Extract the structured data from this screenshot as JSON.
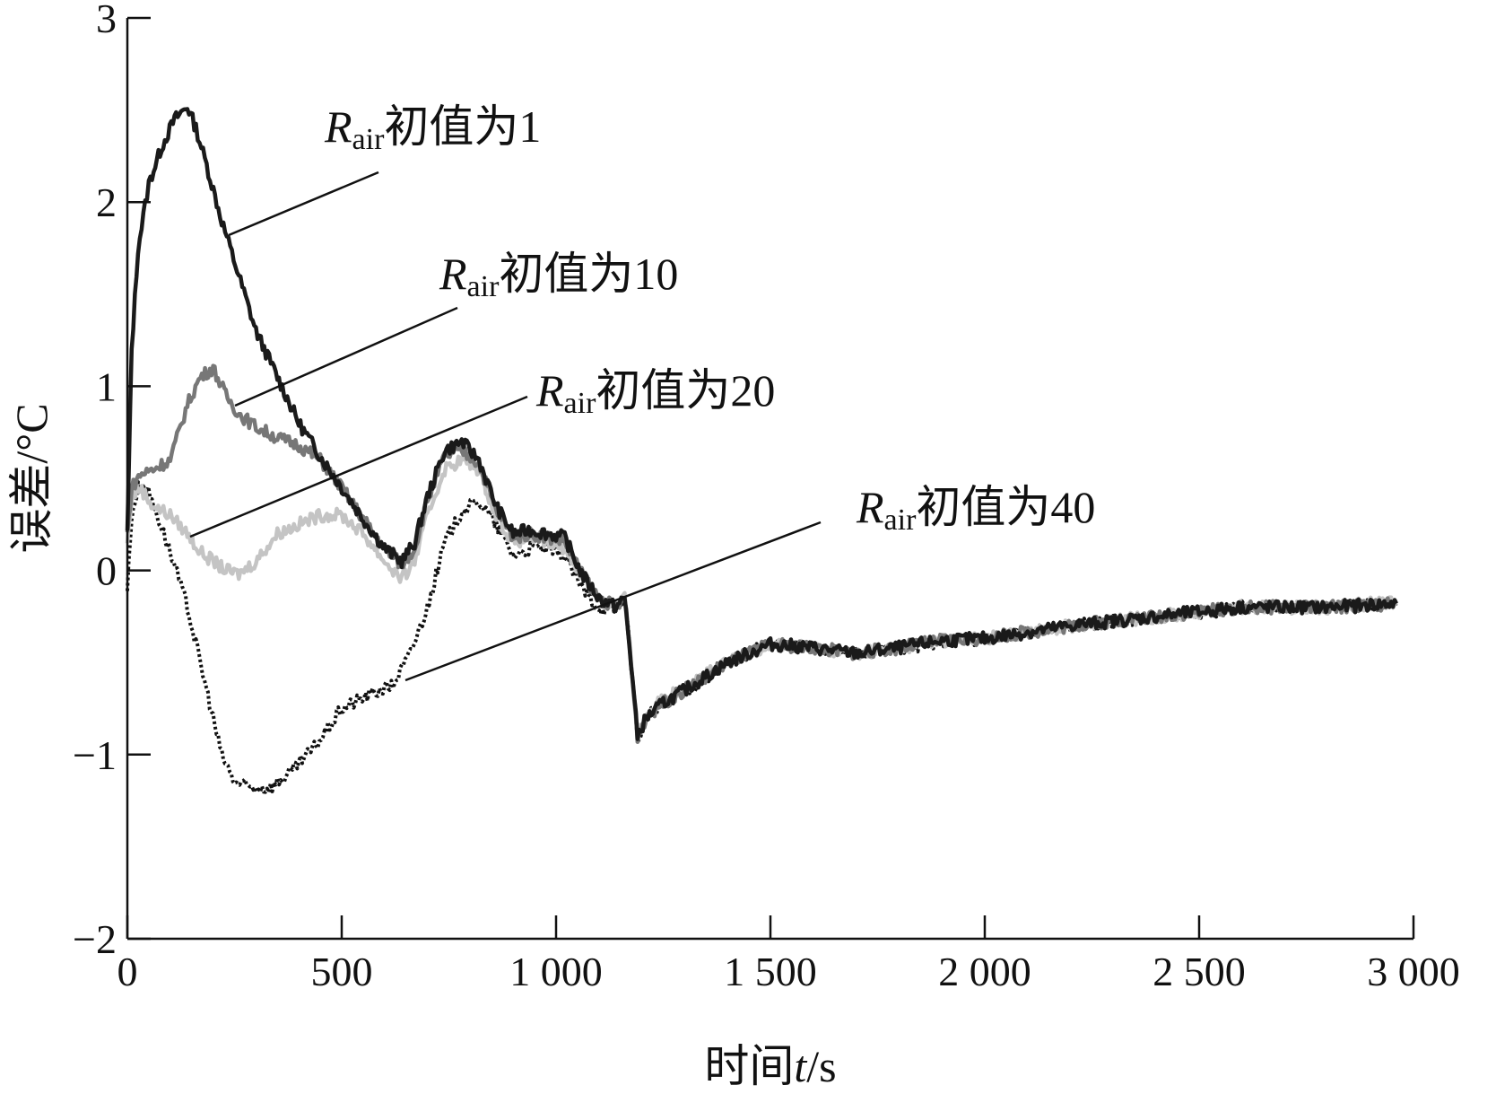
{
  "chart_data": {
    "type": "line",
    "xlabel": {
      "prefix": "时间",
      "var": "t",
      "unit": "/s"
    },
    "ylabel": "误差/°C",
    "xlim": [
      0,
      3000
    ],
    "ylim": [
      -2,
      3
    ],
    "x_ticks": [
      0,
      500,
      1000,
      1500,
      2000,
      2500,
      3000
    ],
    "x_tick_labels": [
      "0",
      "500",
      "1 000",
      "1 500",
      "2 000",
      "2 500",
      "3 000"
    ],
    "y_ticks": [
      -2,
      -1,
      0,
      1,
      2,
      3
    ],
    "y_tick_labels": [
      "−2",
      "−1",
      "0",
      "1",
      "2",
      "3"
    ],
    "grid": false,
    "series": [
      {
        "name": "Rair初值为1",
        "color": "#1a1a1a",
        "style": "solid",
        "x": [
          0,
          10,
          25,
          50,
          80,
          110,
          140,
          160,
          185,
          220,
          260,
          300,
          350,
          400,
          450,
          500,
          550,
          600,
          640,
          670,
          700,
          740,
          780,
          820,
          860,
          900,
          940,
          980,
          1020,
          1060,
          1100,
          1140,
          1160,
          1175,
          1190,
          1210,
          1250,
          1300,
          1400,
          1500,
          1600,
          1700,
          1800,
          1900,
          2000,
          2200,
          2400,
          2600,
          2800,
          2960
        ],
        "y": [
          0.2,
          1.2,
          1.75,
          2.1,
          2.3,
          2.45,
          2.52,
          2.4,
          2.2,
          1.9,
          1.6,
          1.3,
          1.05,
          0.8,
          0.62,
          0.45,
          0.28,
          0.12,
          0.05,
          0.15,
          0.4,
          0.65,
          0.7,
          0.6,
          0.35,
          0.2,
          0.22,
          0.2,
          0.18,
          -0.02,
          -0.15,
          -0.2,
          -0.15,
          -0.5,
          -0.9,
          -0.8,
          -0.72,
          -0.65,
          -0.5,
          -0.4,
          -0.42,
          -0.45,
          -0.42,
          -0.38,
          -0.37,
          -0.3,
          -0.25,
          -0.2,
          -0.2,
          -0.18
        ]
      },
      {
        "name": "Rair初值为10",
        "color": "#777777",
        "style": "solid",
        "x": [
          0,
          10,
          30,
          60,
          100,
          140,
          170,
          200,
          230,
          260,
          300,
          350,
          400,
          450,
          500,
          550,
          600,
          640,
          670,
          700,
          740,
          780,
          820,
          860,
          900,
          940,
          980,
          1020,
          1060,
          1100,
          1140,
          1160,
          1175,
          1190,
          1210,
          1250,
          1300,
          1400,
          1500,
          1600,
          1700,
          1800,
          1900,
          2000,
          2200,
          2400,
          2600,
          2800,
          2960
        ],
        "y": [
          0.2,
          0.45,
          0.52,
          0.55,
          0.6,
          0.9,
          1.05,
          1.1,
          0.95,
          0.85,
          0.78,
          0.72,
          0.68,
          0.6,
          0.45,
          0.28,
          0.12,
          0.03,
          0.12,
          0.38,
          0.62,
          0.65,
          0.58,
          0.33,
          0.18,
          0.2,
          0.18,
          0.16,
          -0.02,
          -0.15,
          -0.2,
          -0.15,
          -0.5,
          -0.9,
          -0.8,
          -0.72,
          -0.65,
          -0.5,
          -0.4,
          -0.42,
          -0.45,
          -0.42,
          -0.38,
          -0.37,
          -0.3,
          -0.25,
          -0.2,
          -0.2,
          -0.18
        ]
      },
      {
        "name": "Rair初值为20",
        "color": "#c4c4c4",
        "style": "solid",
        "x": [
          0,
          10,
          30,
          60,
          100,
          140,
          170,
          200,
          230,
          260,
          300,
          350,
          400,
          450,
          500,
          550,
          600,
          640,
          670,
          700,
          740,
          780,
          820,
          860,
          900,
          940,
          980,
          1020,
          1060,
          1100,
          1140,
          1160,
          1175,
          1190,
          1210,
          1250,
          1300,
          1400,
          1500,
          1600,
          1700,
          1800,
          1900,
          2000,
          2200,
          2400,
          2600,
          2800,
          2960
        ],
        "y": [
          0.15,
          0.4,
          0.45,
          0.35,
          0.3,
          0.2,
          0.1,
          0.05,
          0.0,
          -0.02,
          0.05,
          0.2,
          0.25,
          0.3,
          0.3,
          0.2,
          0.05,
          -0.05,
          0.05,
          0.3,
          0.55,
          0.6,
          0.55,
          0.3,
          0.15,
          0.18,
          0.15,
          0.12,
          -0.02,
          -0.15,
          -0.2,
          -0.15,
          -0.5,
          -0.88,
          -0.78,
          -0.7,
          -0.63,
          -0.5,
          -0.4,
          -0.42,
          -0.45,
          -0.42,
          -0.38,
          -0.37,
          -0.3,
          -0.25,
          -0.2,
          -0.2,
          -0.17
        ]
      },
      {
        "name": "Rair初值为40",
        "color": "#111111",
        "style": "dotted",
        "x": [
          0,
          10,
          25,
          45,
          70,
          100,
          140,
          180,
          220,
          250,
          290,
          330,
          370,
          400,
          440,
          500,
          560,
          620,
          660,
          700,
          740,
          780,
          820,
          860,
          900,
          940,
          980,
          1020,
          1060,
          1100,
          1140,
          1160,
          1175,
          1190,
          1210,
          1250,
          1300,
          1400,
          1500,
          1600,
          1700,
          1800,
          1900,
          2000,
          2200,
          2400,
          2600,
          2800,
          2960
        ],
        "y": [
          -0.1,
          0.3,
          0.45,
          0.45,
          0.3,
          0.1,
          -0.2,
          -0.6,
          -1.0,
          -1.15,
          -1.18,
          -1.18,
          -1.12,
          -1.05,
          -0.95,
          -0.75,
          -0.68,
          -0.62,
          -0.45,
          -0.2,
          0.15,
          0.32,
          0.38,
          0.25,
          0.08,
          0.12,
          0.12,
          0.08,
          -0.1,
          -0.2,
          -0.22,
          -0.15,
          -0.5,
          -0.92,
          -0.8,
          -0.73,
          -0.66,
          -0.5,
          -0.4,
          -0.42,
          -0.45,
          -0.43,
          -0.38,
          -0.37,
          -0.3,
          -0.26,
          -0.2,
          -0.2,
          -0.18
        ]
      }
    ],
    "annotations": [
      {
        "series": 0,
        "main": "R",
        "sub": "air",
        "tail": "初值为1"
      },
      {
        "series": 1,
        "main": "R",
        "sub": "air",
        "tail": "初值为10"
      },
      {
        "series": 2,
        "main": "R",
        "sub": "air",
        "tail": "初值为20"
      },
      {
        "series": 3,
        "main": "R",
        "sub": "air",
        "tail": "初值为40"
      }
    ]
  }
}
